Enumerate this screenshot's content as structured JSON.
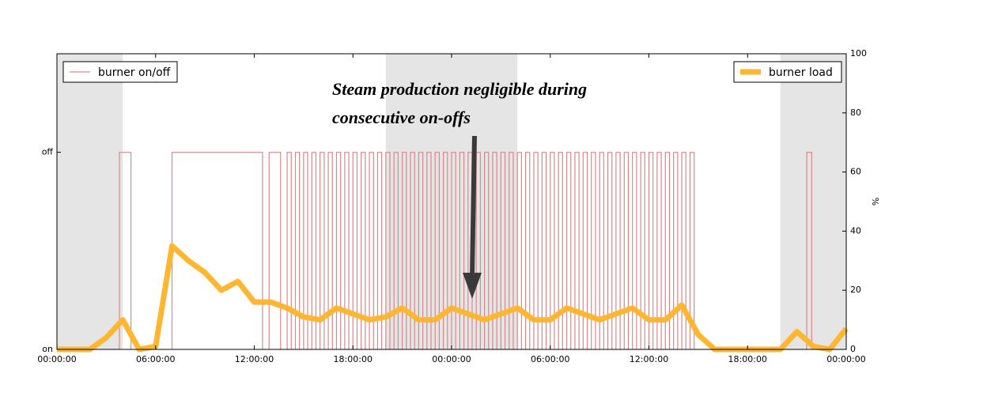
{
  "chart_data": {
    "type": "line",
    "annotation": "Steam production negligible during consecutive on-offs",
    "y2label": "%",
    "xlim": [
      0,
      48
    ],
    "xticks": [
      {
        "value": 0,
        "label": "00:00:00"
      },
      {
        "value": 6,
        "label": "06:00:00"
      },
      {
        "value": 12,
        "label": "12:00:00"
      },
      {
        "value": 18,
        "label": "18:00:00"
      },
      {
        "value": 24,
        "label": "00:00:00"
      },
      {
        "value": 30,
        "label": "06:00:00"
      },
      {
        "value": 36,
        "label": "12:00:00"
      },
      {
        "value": 42,
        "label": "18:00:00"
      },
      {
        "value": 48,
        "label": "00:00:00"
      }
    ],
    "ylim": [
      0,
      1.5
    ],
    "yticks": [
      {
        "value": 0,
        "label": "on"
      },
      {
        "value": 1,
        "label": "off"
      }
    ],
    "y2lim": [
      0,
      100
    ],
    "y2ticks": [
      0,
      20,
      40,
      60,
      80,
      100
    ],
    "shaded": [
      [
        0,
        4
      ],
      [
        20,
        28
      ],
      [
        44,
        48
      ]
    ],
    "shade_color": "#e5e5e5",
    "onoff": {
      "name": "burner on/off",
      "color": "#d9888a",
      "legend": "upper left",
      "off_periods": [
        [
          3.8,
          4.5
        ],
        [
          7,
          12.5
        ],
        [
          12.9,
          13.6
        ],
        [
          14,
          14.25
        ],
        [
          14.5,
          14.75
        ],
        [
          15,
          15.25
        ],
        [
          15.5,
          15.75
        ],
        [
          16,
          16.25
        ],
        [
          16.5,
          16.75
        ],
        [
          17,
          17.25
        ],
        [
          17.5,
          17.75
        ],
        [
          18,
          18.25
        ],
        [
          18.5,
          18.75
        ],
        [
          19,
          19.25
        ],
        [
          19.5,
          19.75
        ],
        [
          20,
          20.25
        ],
        [
          20.5,
          20.75
        ],
        [
          21,
          21.25
        ],
        [
          21.5,
          21.75
        ],
        [
          22,
          22.25
        ],
        [
          22.5,
          22.75
        ],
        [
          23,
          23.25
        ],
        [
          23.5,
          23.75
        ],
        [
          24,
          24.25
        ],
        [
          24.5,
          24.75
        ],
        [
          25,
          25.25
        ],
        [
          25.5,
          25.75
        ],
        [
          26,
          26.25
        ],
        [
          26.5,
          26.75
        ],
        [
          27,
          27.25
        ],
        [
          27.5,
          27.75
        ],
        [
          28,
          28.25
        ],
        [
          28.5,
          28.75
        ],
        [
          29,
          29.25
        ],
        [
          29.5,
          29.75
        ],
        [
          30,
          30.25
        ],
        [
          30.5,
          30.75
        ],
        [
          31,
          31.25
        ],
        [
          31.5,
          31.75
        ],
        [
          32,
          32.25
        ],
        [
          32.5,
          32.75
        ],
        [
          33,
          33.25
        ],
        [
          33.5,
          33.75
        ],
        [
          34,
          34.25
        ],
        [
          34.5,
          34.75
        ],
        [
          35,
          35.25
        ],
        [
          35.5,
          35.75
        ],
        [
          36,
          36.25
        ],
        [
          36.5,
          36.75
        ],
        [
          37,
          37.25
        ],
        [
          37.5,
          37.75
        ],
        [
          38,
          38.25
        ],
        [
          38.5,
          38.75
        ],
        [
          45.6,
          45.9
        ]
      ]
    },
    "x": [
      0,
      1,
      2,
      3,
      4,
      5,
      6,
      7,
      8,
      9,
      10,
      11,
      12,
      13,
      14,
      15,
      16,
      17,
      18,
      19,
      20,
      21,
      22,
      23,
      24,
      25,
      26,
      27,
      28,
      29,
      30,
      31,
      32,
      33,
      34,
      35,
      36,
      37,
      38,
      39,
      40,
      41,
      42,
      43,
      44,
      45,
      46,
      47,
      48
    ],
    "series": [
      {
        "name": "burner load",
        "color": "#ffb733",
        "axis": "y2",
        "legend": "upper right",
        "values": [
          0,
          0,
          0,
          4,
          10,
          0,
          1,
          35,
          30,
          26,
          20,
          23,
          16,
          16,
          14,
          11,
          10,
          14,
          12,
          10,
          11,
          14,
          10,
          10,
          14,
          12,
          10,
          12,
          14,
          10,
          10,
          14,
          12,
          10,
          12,
          14,
          10,
          10,
          15,
          5,
          0,
          0,
          0,
          0,
          0,
          6,
          1,
          0,
          7
        ]
      }
    ]
  }
}
